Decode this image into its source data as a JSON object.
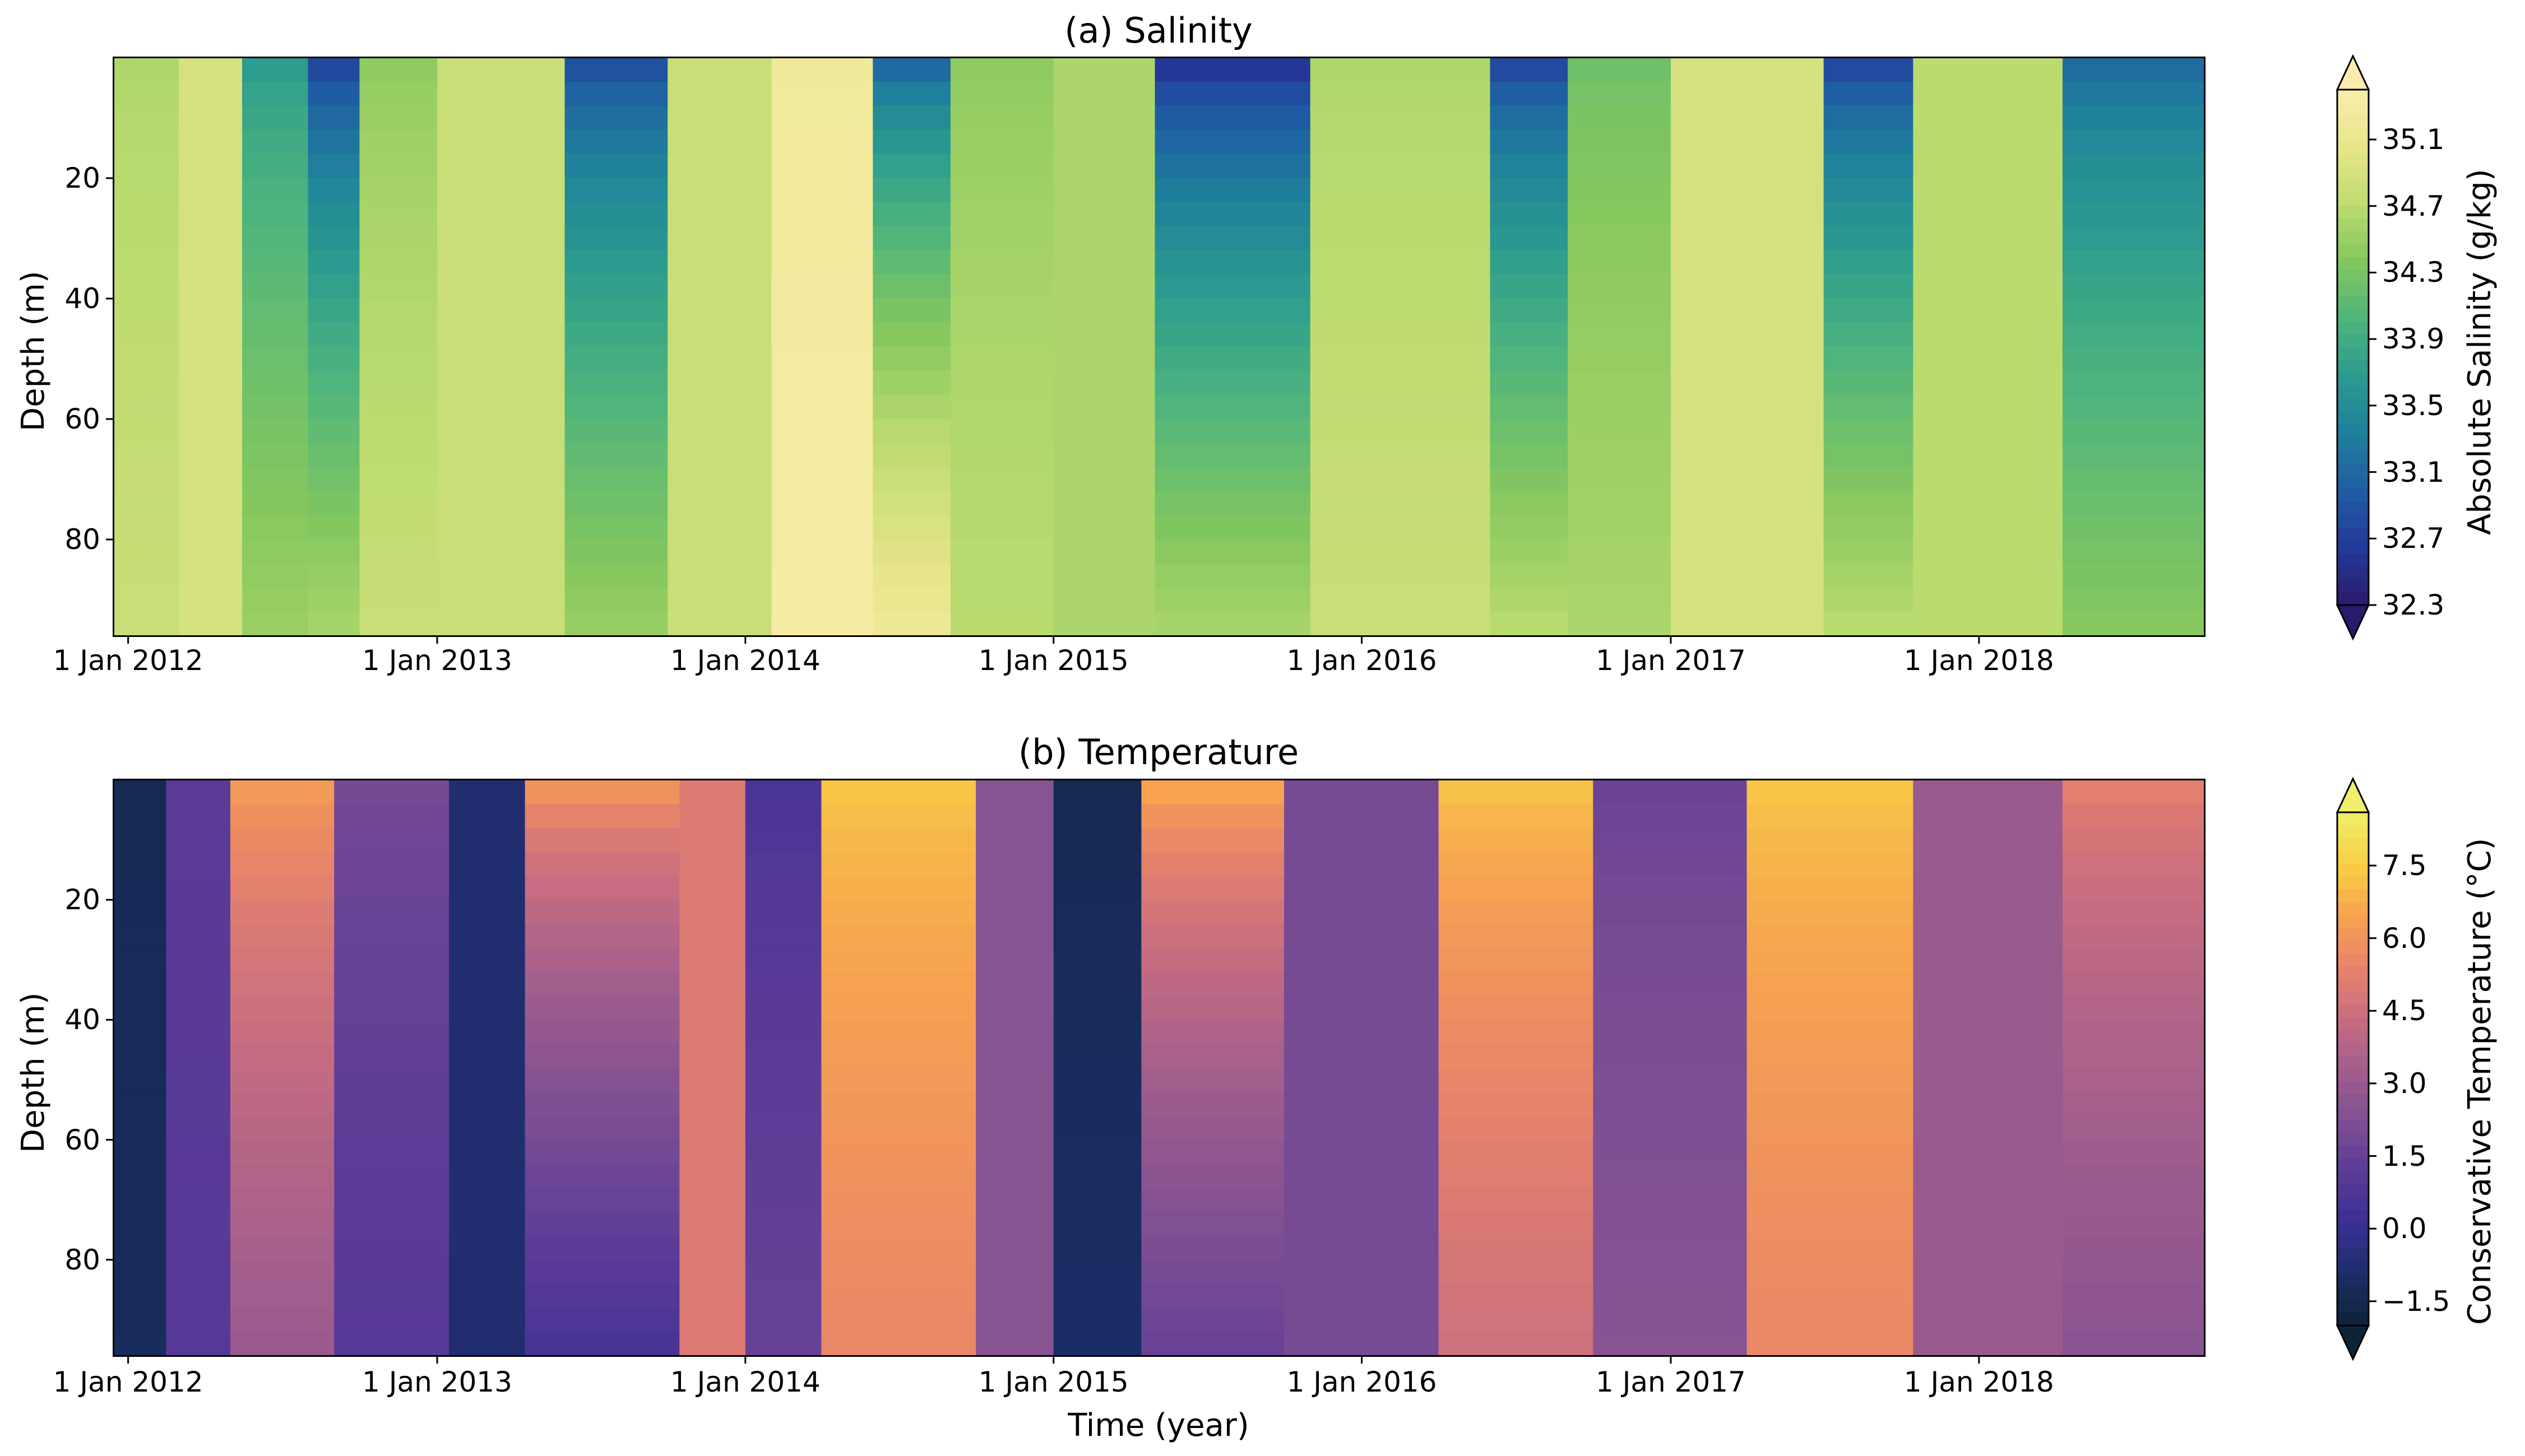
{
  "chart_data": [
    {
      "type": "heatmap",
      "title": "(a) Salinity",
      "xlabel": "",
      "ylabel": "Depth (m)",
      "x_ticks": [
        "1 Jan 2012",
        "1 Jan 2013",
        "1 Jan 2014",
        "1 Jan 2015",
        "1 Jan 2016",
        "1 Jan 2017",
        "1 Jan 2018"
      ],
      "y_ticks": [
        "20",
        "40",
        "60",
        "80"
      ],
      "xlim": [
        "2011-12-15",
        "2018-09-25"
      ],
      "ylim_depth_m": [
        0,
        96
      ],
      "y_inverted": true,
      "colorbar": {
        "label": "Absolute Salinity (g/kg)",
        "ticks": [
          "32.3",
          "32.7",
          "33.1",
          "33.5",
          "33.9",
          "34.3",
          "34.7",
          "35.1"
        ],
        "range": [
          32.3,
          35.4
        ],
        "extend": "both",
        "colors": [
          "#2a1a6b",
          "#243a9a",
          "#1f5da3",
          "#1f7f9c",
          "#2b9b8f",
          "#4fb57c",
          "#84c75e",
          "#bedc70",
          "#e8e58a",
          "#fbedad"
        ]
      },
      "period_values": [
        {
          "start": "2011-12-15",
          "end": "2012-03-01",
          "surface": 34.6,
          "bottom": 34.8
        },
        {
          "start": "2012-03-01",
          "end": "2012-05-15",
          "surface": 34.9,
          "bottom": 34.9
        },
        {
          "start": "2012-05-15",
          "end": "2012-08-01",
          "surface": 33.6,
          "bottom": 34.5
        },
        {
          "start": "2012-08-01",
          "end": "2012-10-01",
          "surface": 32.6,
          "bottom": 34.6
        },
        {
          "start": "2012-10-01",
          "end": "2013-01-01",
          "surface": 34.4,
          "bottom": 34.8
        },
        {
          "start": "2013-01-01",
          "end": "2013-06-01",
          "surface": 34.8,
          "bottom": 34.8
        },
        {
          "start": "2013-06-01",
          "end": "2013-10-01",
          "surface": 32.7,
          "bottom": 34.5
        },
        {
          "start": "2013-10-01",
          "end": "2014-02-01",
          "surface": 34.8,
          "bottom": 34.8
        },
        {
          "start": "2014-02-01",
          "end": "2014-06-01",
          "surface": 35.2,
          "bottom": 35.3
        },
        {
          "start": "2014-06-01",
          "end": "2014-09-01",
          "surface": 32.9,
          "bottom": 35.2
        },
        {
          "start": "2014-09-01",
          "end": "2015-01-01",
          "surface": 34.4,
          "bottom": 34.7
        },
        {
          "start": "2015-01-01",
          "end": "2015-05-01",
          "surface": 34.6,
          "bottom": 34.6
        },
        {
          "start": "2015-05-01",
          "end": "2015-11-01",
          "surface": 32.4,
          "bottom": 34.6
        },
        {
          "start": "2015-11-01",
          "end": "2016-06-01",
          "surface": 34.6,
          "bottom": 34.8
        },
        {
          "start": "2016-06-01",
          "end": "2016-09-01",
          "surface": 32.6,
          "bottom": 34.7
        },
        {
          "start": "2016-09-01",
          "end": "2017-01-01",
          "surface": 34.2,
          "bottom": 34.6
        },
        {
          "start": "2017-01-01",
          "end": "2017-07-01",
          "surface": 34.9,
          "bottom": 34.9
        },
        {
          "start": "2017-07-01",
          "end": "2017-10-15",
          "surface": 32.6,
          "bottom": 34.7
        },
        {
          "start": "2017-10-15",
          "end": "2018-04-10",
          "surface": 34.7,
          "bottom": 34.7
        },
        {
          "start": "2018-04-10",
          "end": "2018-09-25",
          "surface": 33.0,
          "bottom": 34.4
        }
      ]
    },
    {
      "type": "heatmap",
      "title": "(b) Temperature",
      "xlabel": "Time (year)",
      "ylabel": "Depth (m)",
      "x_ticks": [
        "1 Jan 2012",
        "1 Jan 2013",
        "1 Jan 2014",
        "1 Jan 2015",
        "1 Jan 2016",
        "1 Jan 2017",
        "1 Jan 2018"
      ],
      "y_ticks": [
        "20",
        "40",
        "60",
        "80"
      ],
      "xlim": [
        "2011-12-15",
        "2018-09-25"
      ],
      "ylim_depth_m": [
        0,
        96
      ],
      "y_inverted": true,
      "colorbar": {
        "label": "Conservative Temperature (°C)",
        "ticks": [
          "−1.5",
          "0.0",
          "1.5",
          "3.0",
          "4.5",
          "6.0",
          "7.5"
        ],
        "range": [
          -2.0,
          8.6
        ],
        "extend": "both",
        "colors": [
          "#0d2437",
          "#1c2e69",
          "#3b2f95",
          "#5c3b97",
          "#7f4f93",
          "#a35e8c",
          "#c96d80",
          "#e8846a",
          "#f7a44f",
          "#f8cf45",
          "#f0ee6a"
        ]
      },
      "period_values": [
        {
          "start": "2011-12-15",
          "end": "2012-02-15",
          "surface": -1.4,
          "bottom": -1.2
        },
        {
          "start": "2012-02-15",
          "end": "2012-05-01",
          "surface": 1.2,
          "bottom": 1.0
        },
        {
          "start": "2012-05-01",
          "end": "2012-09-01",
          "surface": 6.5,
          "bottom": 3.0
        },
        {
          "start": "2012-09-01",
          "end": "2013-01-15",
          "surface": 2.0,
          "bottom": 1.0
        },
        {
          "start": "2013-01-15",
          "end": "2013-04-15",
          "surface": -0.8,
          "bottom": -0.8
        },
        {
          "start": "2013-04-15",
          "end": "2013-10-15",
          "surface": 6.5,
          "bottom": 0.5
        },
        {
          "start": "2013-10-15",
          "end": "2014-01-01",
          "surface": 5.0,
          "bottom": 5.0
        },
        {
          "start": "2014-01-01",
          "end": "2014-04-01",
          "surface": 0.5,
          "bottom": 1.5
        },
        {
          "start": "2014-04-01",
          "end": "2014-10-01",
          "surface": 7.5,
          "bottom": 5.5
        },
        {
          "start": "2014-10-01",
          "end": "2015-01-01",
          "surface": 2.5,
          "bottom": 2.5
        },
        {
          "start": "2015-01-01",
          "end": "2015-04-15",
          "surface": -1.5,
          "bottom": -1.0
        },
        {
          "start": "2015-04-15",
          "end": "2015-10-01",
          "surface": 7.0,
          "bottom": 1.5
        },
        {
          "start": "2015-10-01",
          "end": "2016-04-01",
          "surface": 2.0,
          "bottom": 2.0
        },
        {
          "start": "2016-04-01",
          "end": "2016-10-01",
          "surface": 7.5,
          "bottom": 4.5
        },
        {
          "start": "2016-10-01",
          "end": "2017-04-01",
          "surface": 1.5,
          "bottom": 2.5
        },
        {
          "start": "2017-04-01",
          "end": "2017-10-15",
          "surface": 7.5,
          "bottom": 5.5
        },
        {
          "start": "2017-10-15",
          "end": "2018-04-10",
          "surface": 3.0,
          "bottom": 3.0
        },
        {
          "start": "2018-04-10",
          "end": "2018-09-25",
          "surface": 5.5,
          "bottom": 2.5
        }
      ]
    }
  ]
}
